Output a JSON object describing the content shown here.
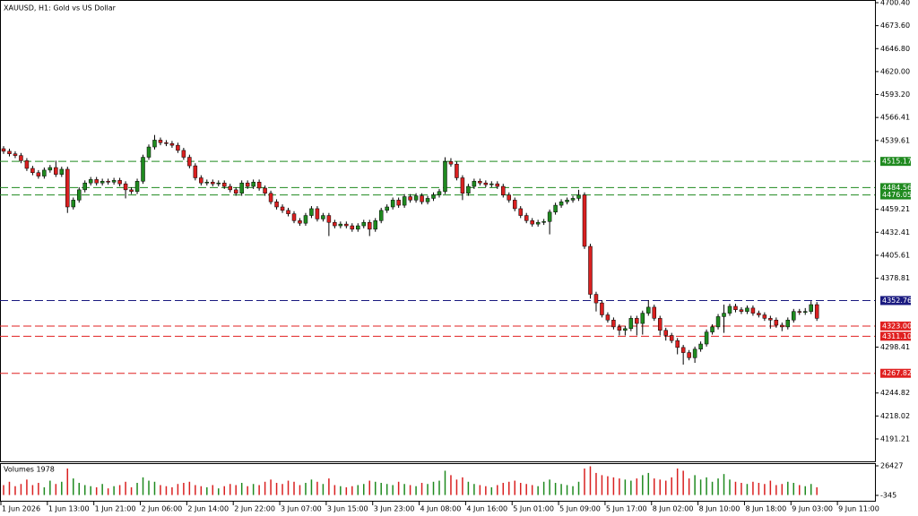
{
  "chart_data": {
    "type": "candlestick",
    "title": "XAUUSD, H1:  Gold vs US Dollar",
    "up_color": "#1f8a1f",
    "down_color": "#d92020",
    "ylim": [
      4165.05,
      4703.54
    ],
    "yticks": [
      {
        "value": 4700.4,
        "label": "4700.40"
      },
      {
        "value": 4673.6,
        "label": "4673.60"
      },
      {
        "value": 4646.8,
        "label": "4646.80"
      },
      {
        "value": 4620,
        "label": "4620.00"
      },
      {
        "value": 4593.2,
        "label": "4593.20"
      },
      {
        "value": 4566.41,
        "label": "4566.41"
      },
      {
        "value": 4539.61,
        "label": "4539.61"
      },
      {
        "value": 4459.21,
        "label": "4459.21"
      },
      {
        "value": 4432.41,
        "label": "4432.41"
      },
      {
        "value": 4405.61,
        "label": "4405.61"
      },
      {
        "value": 4378.81,
        "label": "4378.81"
      },
      {
        "value": 4298.41,
        "label": "4298.41"
      },
      {
        "value": 4244.82,
        "label": "4244.82"
      },
      {
        "value": 4218.02,
        "label": "4218.02"
      },
      {
        "value": 4191.21,
        "label": "4191.21"
      }
    ],
    "xticks": [
      {
        "value": 0,
        "label": "1 Jun 2026"
      },
      {
        "value": 8,
        "label": "1 Jun 13:00"
      },
      {
        "value": 16,
        "label": "1 Jun 21:00"
      },
      {
        "value": 24,
        "label": "2 Jun 06:00"
      },
      {
        "value": 32,
        "label": "2 Jun 14:00"
      },
      {
        "value": 40,
        "label": "2 Jun 22:00"
      },
      {
        "value": 48,
        "label": "3 Jun 07:00"
      },
      {
        "value": 56,
        "label": "3 Jun 15:00"
      },
      {
        "value": 64,
        "label": "3 Jun 23:00"
      },
      {
        "value": 72,
        "label": "4 Jun 08:00"
      },
      {
        "value": 80,
        "label": "4 Jun 16:00"
      },
      {
        "value": 88,
        "label": "5 Jun 01:00"
      },
      {
        "value": 96,
        "label": "5 Jun 09:00"
      },
      {
        "value": 104,
        "label": "5 Jun 17:00"
      },
      {
        "value": 112,
        "label": "8 Jun 02:00"
      },
      {
        "value": 120,
        "label": "8 Jun 10:00"
      },
      {
        "value": 128,
        "label": "8 Jun 18:00"
      },
      {
        "value": 136,
        "label": "9 Jun 03:00"
      },
      {
        "value": 144,
        "label": "9 Jun 11:00"
      }
    ],
    "levels": [
      {
        "value": 4515.17,
        "label": "4515.17",
        "color": "#1f8a1f"
      },
      {
        "value": 4484.56,
        "label": "4484.56",
        "color": "#1f8a1f"
      },
      {
        "value": 4476.05,
        "label": "4476.05",
        "color": "#1f8a1f"
      },
      {
        "value": 4352.76,
        "label": "4352.76",
        "color": "#1a1a80"
      },
      {
        "value": 4323,
        "label": "4323.00",
        "color": "#e02020"
      },
      {
        "value": 4311.1,
        "label": "4311.10",
        "color": "#e02020"
      },
      {
        "value": 4267.82,
        "label": "4267.82",
        "color": "#e02020"
      }
    ],
    "open": [
      4530,
      4527,
      4524,
      4522,
      4516,
      4507,
      4502,
      4498,
      4505,
      4508,
      4500,
      4506,
      4462,
      4470,
      4482,
      4490,
      4494,
      4490,
      4492,
      4491,
      4493,
      4489,
      4482,
      4480,
      4492,
      4520,
      4532,
      4540,
      4537,
      4536,
      4534,
      4528,
      4520,
      4510,
      4496,
      4490,
      4491,
      4489,
      4490,
      4486,
      4482,
      4478,
      4490,
      4486,
      4491,
      4484,
      4478,
      4468,
      4462,
      4458,
      4454,
      4446,
      4443,
      4452,
      4460,
      4448,
      4452,
      4444,
      4440,
      4442,
      4440,
      4436,
      4440,
      4444,
      4436,
      4446,
      4458,
      4462,
      4470,
      4464,
      4474,
      4470,
      4475,
      4468,
      4472,
      4476,
      4480,
      4515,
      4512,
      4496,
      4478,
      4486,
      4492,
      4490,
      4488,
      4489,
      4486,
      4476,
      4470,
      4460,
      4452,
      4446,
      4442,
      4444,
      4445,
      4456,
      4464,
      4468,
      4470,
      4472,
      4476,
      4416,
      4360,
      4350,
      4336,
      4330,
      4322,
      4318,
      4320,
      4332,
      4326,
      4338,
      4345,
      4332,
      4318,
      4312,
      4306,
      4298,
      4292,
      4286,
      4296,
      4302,
      4316,
      4322,
      4334,
      4338,
      4346,
      4342,
      4340,
      4344,
      4338,
      4336,
      4332,
      4330,
      4324,
      4322,
      4330,
      4340,
      4339,
      4340,
      4348
    ],
    "high": [
      4533,
      4530,
      4527,
      4525,
      4519,
      4510,
      4505,
      4508,
      4511,
      4516,
      4509,
      4509,
      4473,
      4485,
      4493,
      4497,
      4497,
      4495,
      4495,
      4496,
      4496,
      4492,
      4485,
      4495,
      4523,
      4535,
      4546,
      4543,
      4540,
      4539,
      4537,
      4531,
      4523,
      4513,
      4499,
      4494,
      4494,
      4493,
      4493,
      4489,
      4485,
      4493,
      4493,
      4494,
      4494,
      4487,
      4481,
      4471,
      4465,
      4461,
      4457,
      4449,
      4455,
      4463,
      4463,
      4455,
      4455,
      4447,
      4445,
      4445,
      4443,
      4443,
      4447,
      4447,
      4449,
      4461,
      4465,
      4473,
      4473,
      4477,
      4477,
      4478,
      4478,
      4475,
      4479,
      4483,
      4520,
      4519,
      4515,
      4499,
      4489,
      4495,
      4495,
      4493,
      4492,
      4492,
      4489,
      4479,
      4473,
      4463,
      4455,
      4449,
      4447,
      4448,
      4459,
      4467,
      4471,
      4473,
      4475,
      4482,
      4479,
      4419,
      4363,
      4353,
      4339,
      4333,
      4325,
      4323,
      4335,
      4335,
      4341,
      4353,
      4348,
      4335,
      4321,
      4315,
      4309,
      4301,
      4295,
      4299,
      4305,
      4319,
      4325,
      4337,
      4348,
      4349,
      4349,
      4345,
      4347,
      4347,
      4341,
      4339,
      4335,
      4333,
      4327,
      4333,
      4343,
      4343,
      4344,
      4352,
      4351
    ],
    "low": [
      4524,
      4521,
      4519,
      4513,
      4504,
      4499,
      4495,
      4495,
      4502,
      4497,
      4497,
      4455,
      4459,
      4467,
      4479,
      4487,
      4487,
      4487,
      4488,
      4488,
      4486,
      4472,
      4477,
      4477,
      4489,
      4517,
      4529,
      4534,
      4533,
      4531,
      4525,
      4517,
      4507,
      4493,
      4487,
      4487,
      4486,
      4486,
      4483,
      4479,
      4475,
      4475,
      4483,
      4483,
      4481,
      4475,
      4465,
      4459,
      4455,
      4451,
      4443,
      4440,
      4440,
      4449,
      4445,
      4445,
      4428,
      4437,
      4437,
      4437,
      4433,
      4433,
      4437,
      4428,
      4433,
      4443,
      4455,
      4459,
      4461,
      4461,
      4467,
      4467,
      4465,
      4465,
      4469,
      4473,
      4477,
      4509,
      4493,
      4470,
      4475,
      4483,
      4487,
      4485,
      4485,
      4483,
      4473,
      4467,
      4457,
      4449,
      4443,
      4439,
      4439,
      4441,
      4430,
      4453,
      4461,
      4465,
      4467,
      4469,
      4413,
      4355,
      4340,
      4333,
      4327,
      4319,
      4312,
      4312,
      4317,
      4312,
      4313,
      4335,
      4329,
      4312,
      4306,
      4303,
      4290,
      4278,
      4283,
      4280,
      4293,
      4299,
      4313,
      4319,
      4315,
      4335,
      4339,
      4337,
      4337,
      4335,
      4333,
      4329,
      4320,
      4321,
      4317,
      4319,
      4327,
      4336,
      4336,
      4337,
      4329
    ],
    "close": [
      4527,
      4524,
      4522,
      4516,
      4507,
      4502,
      4498,
      4505,
      4508,
      4500,
      4506,
      4462,
      4470,
      4482,
      4490,
      4494,
      4490,
      4492,
      4491,
      4493,
      4489,
      4482,
      4480,
      4492,
      4520,
      4532,
      4540,
      4537,
      4536,
      4534,
      4528,
      4520,
      4510,
      4496,
      4490,
      4491,
      4489,
      4490,
      4486,
      4482,
      4478,
      4490,
      4486,
      4491,
      4484,
      4478,
      4468,
      4462,
      4458,
      4454,
      4446,
      4443,
      4452,
      4460,
      4448,
      4452,
      4444,
      4440,
      4442,
      4440,
      4436,
      4440,
      4444,
      4436,
      4446,
      4458,
      4462,
      4470,
      4464,
      4474,
      4470,
      4475,
      4468,
      4472,
      4476,
      4480,
      4515,
      4512,
      4496,
      4478,
      4486,
      4492,
      4490,
      4488,
      4489,
      4486,
      4476,
      4470,
      4460,
      4452,
      4446,
      4442,
      4444,
      4445,
      4456,
      4464,
      4468,
      4470,
      4472,
      4476,
      4416,
      4360,
      4350,
      4336,
      4330,
      4322,
      4318,
      4320,
      4332,
      4326,
      4338,
      4345,
      4332,
      4318,
      4312,
      4306,
      4298,
      4292,
      4286,
      4296,
      4302,
      4316,
      4322,
      4334,
      4338,
      4346,
      4342,
      4340,
      4344,
      4338,
      4336,
      4332,
      4330,
      4324,
      4322,
      4330,
      4340,
      4339,
      4340,
      4348,
      4332
    ],
    "volume_title": "Volumes 1978",
    "vol_ylim": [
      -6022,
      28860
    ],
    "vol_yticks": [
      26427,
      -345
    ],
    "volume": [
      9000,
      12000,
      8000,
      10000,
      14000,
      9000,
      11000,
      7000,
      13000,
      10000,
      12000,
      24000,
      15000,
      11000,
      9000,
      8000,
      7000,
      10000,
      6000,
      8000,
      9000,
      12000,
      7000,
      11000,
      16000,
      13000,
      12000,
      9000,
      8000,
      7000,
      10000,
      11000,
      12000,
      9000,
      8000,
      7000,
      9000,
      6000,
      8000,
      10000,
      9000,
      11000,
      8000,
      10000,
      9000,
      12000,
      14000,
      11000,
      10000,
      13000,
      12000,
      9000,
      11000,
      14000,
      12000,
      10000,
      15000,
      9000,
      8000,
      7000,
      8000,
      9000,
      10000,
      13000,
      12000,
      11000,
      10000,
      9000,
      12000,
      10000,
      9000,
      8000,
      11000,
      10000,
      12000,
      13000,
      22000,
      18000,
      14000,
      16000,
      12000,
      10000,
      9000,
      8000,
      7000,
      9000,
      11000,
      12000,
      13000,
      11000,
      10000,
      9000,
      8000,
      12000,
      14000,
      11000,
      10000,
      9000,
      8000,
      12000,
      24000,
      26000,
      20000,
      18000,
      17000,
      16000,
      15000,
      14000,
      13000,
      15000,
      18000,
      20000,
      15000,
      14000,
      13000,
      16000,
      24000,
      22000,
      15000,
      18000,
      14000,
      16000,
      12000,
      15000,
      19000,
      14000,
      12000,
      11000,
      10000,
      12000,
      11000,
      10000,
      13000,
      9000,
      10000,
      12000,
      11000,
      9000,
      8000,
      10000,
      7000
    ]
  }
}
